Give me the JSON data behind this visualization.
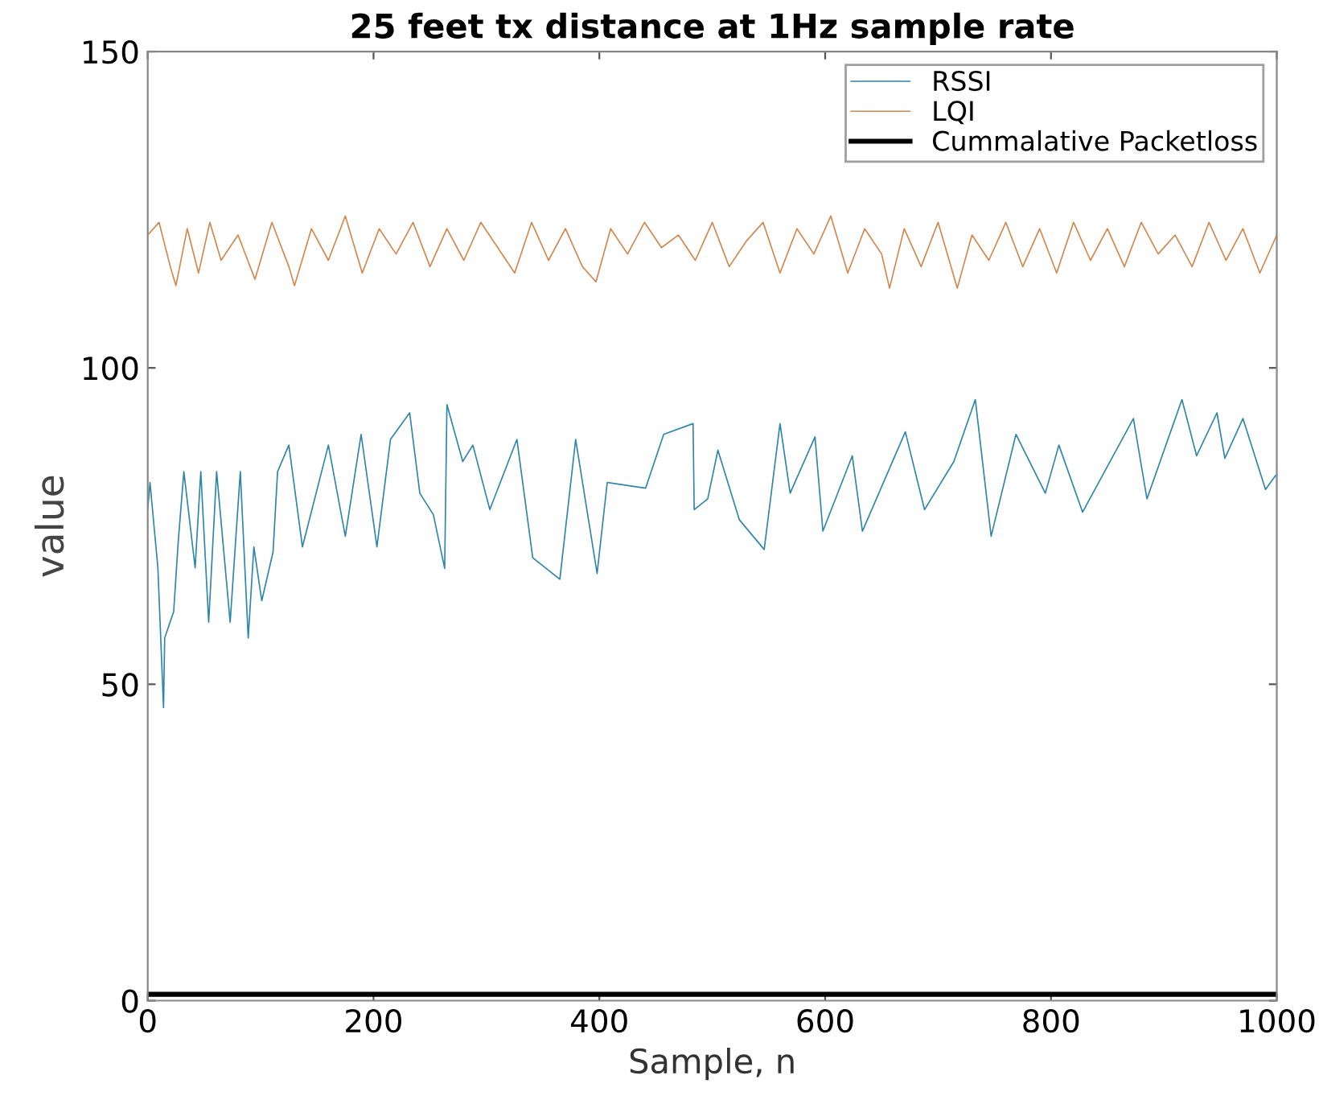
{
  "chart_data": {
    "type": "line",
    "title": "25 feet tx distance at 1Hz sample rate",
    "xlabel": "Sample, n",
    "ylabel": "value",
    "xlim": [
      0,
      1000
    ],
    "ylim": [
      0,
      150
    ],
    "xticks": [
      0,
      200,
      400,
      600,
      800,
      1000
    ],
    "yticks": [
      0,
      50,
      100,
      150
    ],
    "grid": false,
    "legend": "top right",
    "series": [
      {
        "name": "RSSI",
        "color": "#2e86a8",
        "x": [
          0,
          2,
          9,
          14,
          15,
          23,
          27,
          32,
          42,
          47,
          54,
          61,
          73,
          82,
          89,
          94,
          101,
          111,
          115,
          125,
          137,
          160,
          175,
          189,
          203,
          215,
          232,
          241,
          253,
          263,
          265,
          279,
          288,
          303,
          327,
          341,
          365,
          379,
          398,
          407,
          441,
          457,
          483,
          484,
          496,
          505,
          524,
          546,
          560,
          569,
          591,
          598,
          624,
          633,
          671,
          688,
          714,
          733,
          747,
          769,
          795,
          807,
          828,
          873,
          885,
          916,
          929,
          947,
          954,
          970,
          990,
          999,
          1000
        ],
        "values": [
          77.6,
          81.9,
          68.4,
          46.3,
          57.3,
          61.5,
          72.5,
          83.6,
          68.4,
          83.6,
          59.8,
          83.6,
          59.8,
          83.6,
          57.3,
          71.7,
          63.2,
          70.9,
          83.6,
          87.8,
          71.7,
          87.8,
          73.4,
          89.5,
          71.7,
          88.7,
          92.9,
          80.2,
          76.8,
          68.3,
          94.2,
          85.2,
          87.8,
          77.6,
          88.7,
          70.0,
          66.6,
          88.7,
          67.5,
          81.9,
          81.0,
          89.5,
          91.2,
          77.6,
          79.3,
          87.0,
          76.0,
          71.3,
          91.2,
          80.2,
          89.1,
          74.2,
          86.1,
          74.2,
          89.9,
          77.6,
          85.2,
          95.0,
          73.4,
          89.5,
          80.2,
          87.8,
          77.2,
          92.0,
          79.3,
          95.0,
          86.1,
          92.9,
          85.7,
          92.0,
          80.8,
          83.0,
          83.0
        ]
      },
      {
        "name": "LQI",
        "color": "#d0884f",
        "x": [
          0,
          10,
          20,
          25,
          35,
          45,
          55,
          65,
          80,
          95,
          110,
          125,
          130,
          145,
          160,
          175,
          190,
          205,
          220,
          235,
          250,
          265,
          280,
          295,
          310,
          325,
          340,
          355,
          370,
          385,
          397,
          410,
          425,
          440,
          455,
          470,
          485,
          500,
          515,
          530,
          545,
          560,
          575,
          590,
          605,
          620,
          635,
          650,
          657,
          670,
          685,
          700,
          717,
          730,
          745,
          760,
          775,
          790,
          805,
          820,
          835,
          850,
          865,
          880,
          895,
          910,
          925,
          940,
          955,
          970,
          985,
          1000
        ],
        "values": [
          121,
          123,
          116,
          113,
          122,
          115,
          123,
          117,
          121,
          114,
          123,
          116,
          113,
          122,
          117,
          124,
          115,
          122,
          118,
          123,
          116,
          122,
          117,
          123,
          119,
          115,
          123,
          117,
          122,
          116,
          113.6,
          122,
          118,
          123,
          119,
          121,
          117,
          123,
          116,
          120,
          123,
          115,
          122,
          118,
          124,
          115,
          122,
          118,
          112.6,
          122,
          116,
          123,
          112.6,
          121,
          117,
          123,
          116,
          122,
          115,
          123,
          117,
          122,
          116,
          123,
          118,
          121,
          116,
          123,
          117,
          122,
          115,
          121
        ]
      },
      {
        "name": "Cummalative Packetloss",
        "color": "#000000",
        "x": [
          0,
          1000
        ],
        "values": [
          1,
          1
        ]
      }
    ]
  }
}
